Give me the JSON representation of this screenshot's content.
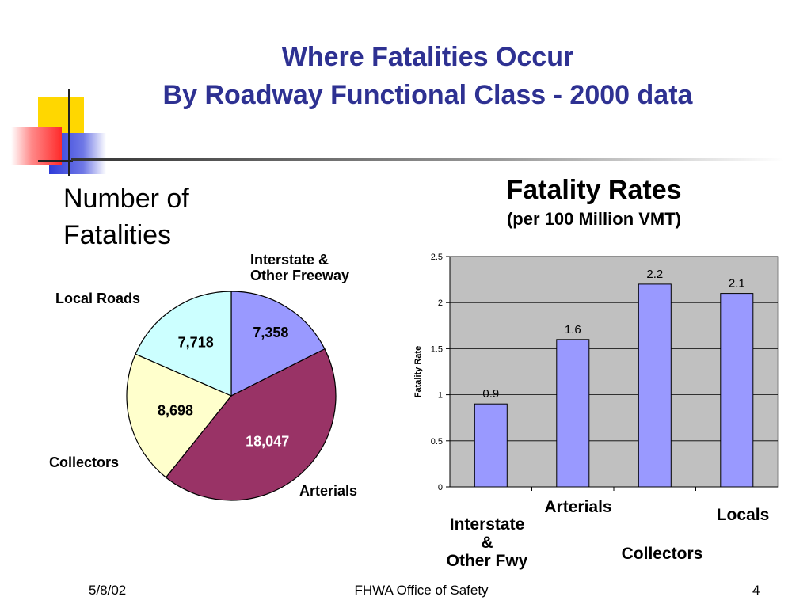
{
  "title": {
    "line1": "Where Fatalities Occur",
    "line2": "By Roadway Functional Class - 2000 data"
  },
  "colors": {
    "title": "#2E3192",
    "deco_yellow": "#FFD700",
    "deco_blue": "#2E3BD9",
    "deco_red": "#FF3333"
  },
  "chart_data": [
    {
      "type": "pie",
      "title": "Number of Fatalities",
      "title_lines": [
        "Number of",
        "Fatalities"
      ],
      "categories": [
        "Interstate & Other Freeway",
        "Arterials",
        "Collectors",
        "Local Roads"
      ],
      "category_lines": [
        [
          "Interstate &",
          "Other Freeway"
        ],
        [
          "Arterials"
        ],
        [
          "Collectors"
        ],
        [
          "Local Roads"
        ]
      ],
      "values": [
        7358,
        18047,
        8698,
        7718
      ],
      "value_labels": [
        "7,358",
        "18,047",
        "8,698",
        "7,718"
      ],
      "colors": [
        "#9999FF",
        "#993366",
        "#FFFFCC",
        "#CCFFFF"
      ]
    },
    {
      "type": "bar",
      "title": "Fatality Rates",
      "subtitle": "(per 100 Million VMT)",
      "categories": [
        "Interstate & Other Fwy",
        "Arterials",
        "Collectors",
        "Locals"
      ],
      "category_lines": [
        [
          "Interstate",
          "&",
          "Other Fwy"
        ],
        [
          "Arterials"
        ],
        [
          "Collectors"
        ],
        [
          "Locals"
        ]
      ],
      "values": [
        0.9,
        1.6,
        2.2,
        2.1
      ],
      "value_labels": [
        "0.9",
        "1.6",
        "2.2",
        "2.1"
      ],
      "ylabel": "Fatality Rate",
      "ylim": [
        0,
        2.5
      ],
      "yticks": [
        0,
        0.5,
        1,
        1.5,
        2,
        2.5
      ],
      "ytick_labels": [
        "0",
        "0.5",
        "1",
        "1.5",
        "2",
        "2.5"
      ],
      "grid": true,
      "plot_background": "#C0C0C0",
      "bar_color": "#9999FF"
    }
  ],
  "footer": {
    "date": "5/8/02",
    "center": "FHWA Office of Safety",
    "page": "4"
  }
}
